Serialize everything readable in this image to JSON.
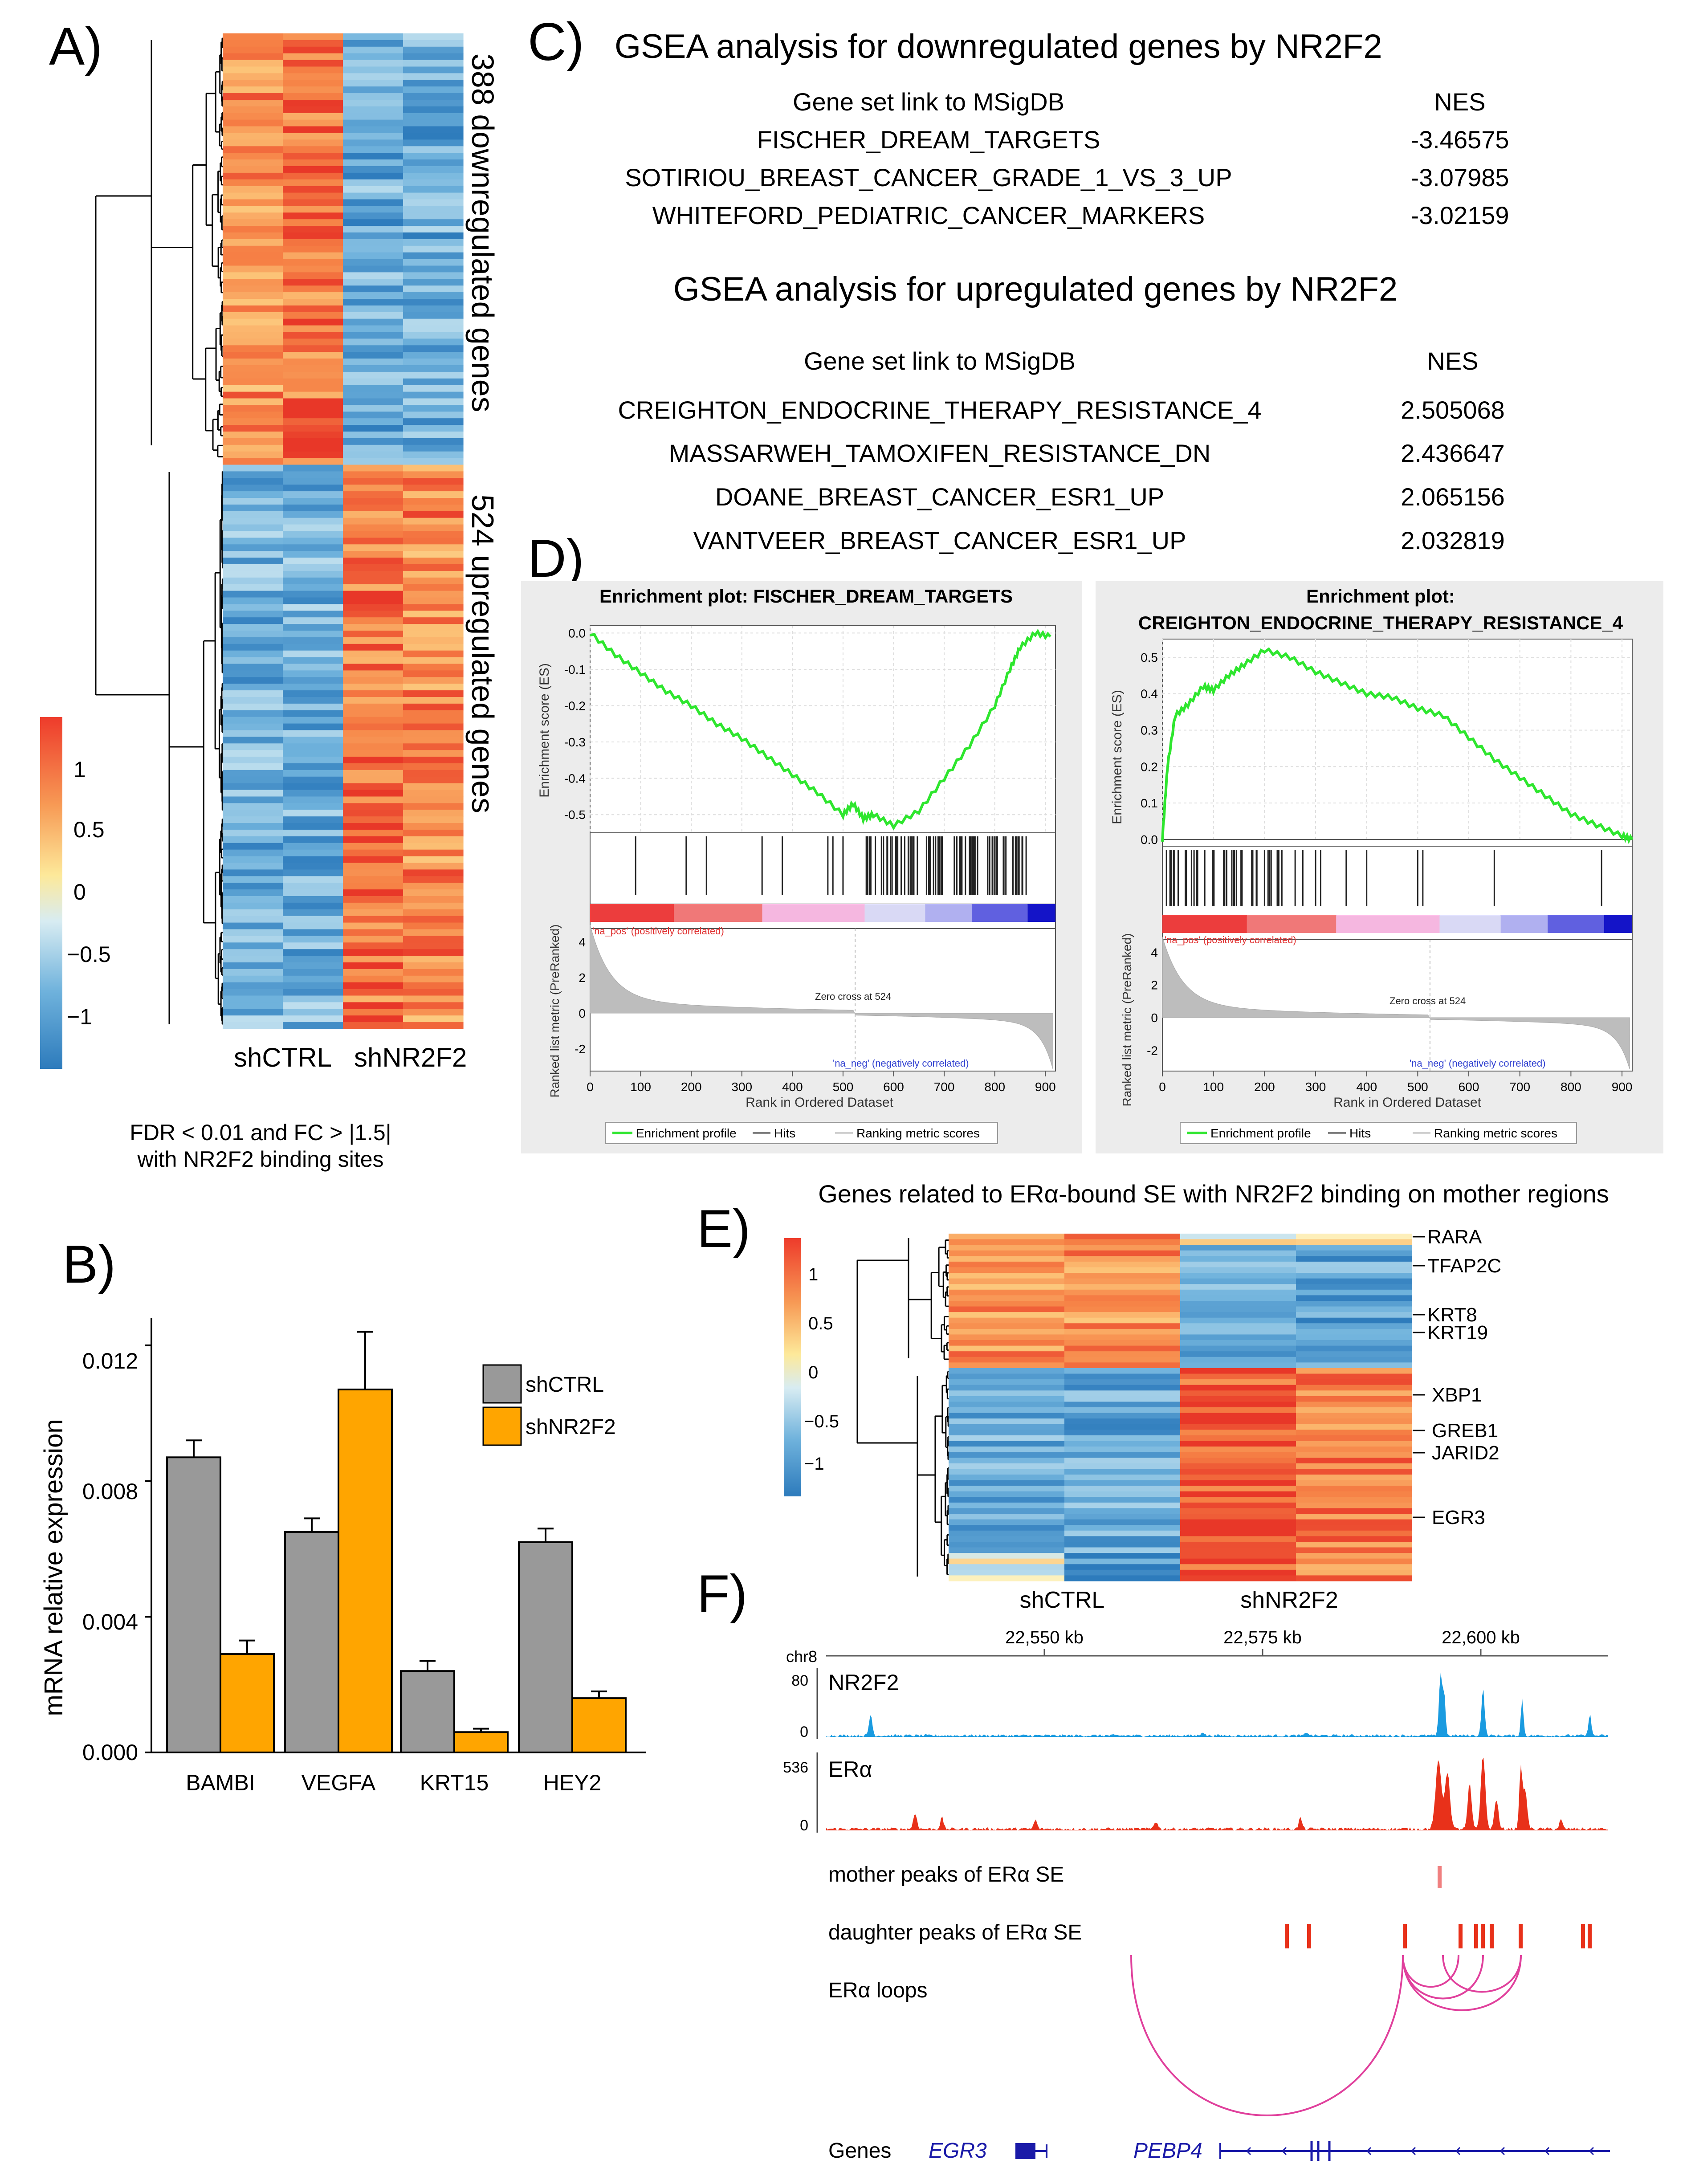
{
  "panel_labels": {
    "a": "A)",
    "b": "B)",
    "c": "C)",
    "d": "D)",
    "e": "E)",
    "f": "F)"
  },
  "panelA": {
    "down_label": "388 downregulated genes",
    "up_label": "524 upregulated genes",
    "col_labels": [
      "shCTRL",
      "shNR2F2"
    ],
    "caption_line1": "FDR < 0.01 and FC > |1.5|",
    "caption_line2": "with NR2F2 binding sites",
    "legend_ticks": [
      "1",
      "0.5",
      "0",
      "−0.5",
      "−1"
    ]
  },
  "panelB": {
    "chart_data": {
      "type": "bar",
      "categories": [
        "BAMBI",
        "VEGFA",
        "KRT15",
        "HEY2"
      ],
      "series": [
        {
          "name": "shCTRL",
          "values": [
            0.0087,
            0.0065,
            0.0024,
            0.0062
          ],
          "errors": [
            0.0005,
            0.0004,
            0.0003,
            0.0004
          ],
          "color": "#999999"
        },
        {
          "name": "shNR2F2",
          "values": [
            0.0029,
            0.0107,
            0.0006,
            0.0016
          ],
          "errors": [
            0.0004,
            0.0017,
            0.0001,
            0.0002
          ],
          "color": "#FFA500"
        }
      ],
      "ylabel": "mRNA relative expression",
      "ylim": [
        0,
        0.0128
      ],
      "yticks": [
        "0.000",
        "0.004",
        "0.008",
        "0.012"
      ],
      "legend_position": "top-right"
    }
  },
  "panelC": {
    "down_title": "GSEA analysis for downregulated genes by NR2F2",
    "up_title": "GSEA analysis for upregulated genes by NR2F2",
    "col_gene_set": "Gene set link to MSigDB",
    "col_nes": "NES",
    "down_rows": [
      {
        "name": "FISCHER_DREAM_TARGETS",
        "nes": "-3.46575"
      },
      {
        "name": "SOTIRIOU_BREAST_CANCER_GRADE_1_VS_3_UP",
        "nes": "-3.07985"
      },
      {
        "name": "WHITEFORD_PEDIATRIC_CANCER_MARKERS",
        "nes": "-3.02159"
      }
    ],
    "up_rows": [
      {
        "name": "CREIGHTON_ENDOCRINE_THERAPY_RESISTANCE_4",
        "nes": "2.505068"
      },
      {
        "name": "MASSARWEH_TAMOXIFEN_RESISTANCE_DN",
        "nes": "2.436647"
      },
      {
        "name": "DOANE_BREAST_CANCER_ESR1_UP",
        "nes": "2.065156"
      },
      {
        "name": "VANTVEER_BREAST_CANCER_ESR1_UP",
        "nes": "2.032819"
      }
    ]
  },
  "panelD": {
    "left_title": "Enrichment plot: FISCHER_DREAM_TARGETS",
    "right_title_1": "Enrichment plot:",
    "right_title_2": "CREIGHTON_ENDOCRINE_THERAPY_RESISTANCE_4",
    "es_label": "Enrichment score (ES)",
    "metric_label": "Ranked list metric (PreRanked)",
    "x_label": "Rank in Ordered Dataset",
    "pos_label": "'na_pos' (positively correlated)",
    "neg_label": "'na_neg' (negatively correlated)",
    "zero_cross": "Zero cross at 524",
    "legend_profile": "Enrichment profile",
    "legend_hits": "Hits",
    "legend_metric": "Ranking metric scores",
    "x_ticks": [
      "0",
      "100",
      "200",
      "300",
      "400",
      "500",
      "600",
      "700",
      "800",
      "900"
    ],
    "left_es_ticks": [
      "0.0",
      "-0.1",
      "-0.2",
      "-0.3",
      "-0.4",
      "-0.5"
    ],
    "right_es_ticks": [
      "0.5",
      "0.4",
      "0.3",
      "0.2",
      "0.1",
      "0.0"
    ],
    "metric_ticks": [
      "4",
      "2",
      "0",
      "-2"
    ],
    "chart_data": [
      {
        "type": "line",
        "title": "Enrichment plot: FISCHER_DREAM_TARGETS",
        "x": [
          0,
          50,
          100,
          150,
          200,
          250,
          300,
          350,
          400,
          450,
          500,
          520,
          540,
          560,
          600,
          650,
          700,
          750,
          800,
          830,
          850,
          880,
          910
        ],
        "y": [
          0.0,
          -0.06,
          -0.11,
          -0.16,
          -0.2,
          -0.25,
          -0.29,
          -0.34,
          -0.39,
          -0.44,
          -0.5,
          -0.47,
          -0.51,
          -0.5,
          -0.53,
          -0.49,
          -0.4,
          -0.31,
          -0.2,
          -0.1,
          -0.04,
          0.0,
          -0.01
        ],
        "ylim": [
          -0.55,
          0.02
        ],
        "xlim": [
          0,
          920
        ]
      },
      {
        "type": "line",
        "title": "Enrichment plot: CREIGHTON_ENDOCRINE_THERAPY_RESISTANCE_4",
        "x": [
          0,
          10,
          25,
          50,
          80,
          100,
          130,
          160,
          200,
          250,
          300,
          350,
          400,
          450,
          500,
          550,
          600,
          650,
          700,
          750,
          800,
          850,
          900,
          920
        ],
        "y": [
          0.0,
          0.2,
          0.34,
          0.37,
          0.42,
          0.41,
          0.45,
          0.48,
          0.52,
          0.5,
          0.46,
          0.43,
          0.4,
          0.39,
          0.36,
          0.34,
          0.28,
          0.22,
          0.17,
          0.12,
          0.07,
          0.04,
          0.01,
          0.0
        ],
        "ylim": [
          0,
          0.55
        ],
        "xlim": [
          0,
          920
        ]
      }
    ]
  },
  "panelE": {
    "title": "Genes related to ERα-bound SE with NR2F2 binding on mother regions",
    "genes": [
      "RARA",
      "TFAP2C",
      "KRT8",
      "KRT19",
      "XBP1",
      "GREB1",
      "JARID2",
      "EGR3"
    ],
    "col_labels": [
      "shCTRL",
      "shNR2F2"
    ],
    "legend_ticks": [
      "1",
      "0.5",
      "0",
      "−0.5",
      "−1"
    ]
  },
  "panelF": {
    "chrom": "chr8",
    "coords": [
      "22,550 kb",
      "22,575 kb",
      "22,600 kb"
    ],
    "track1": {
      "name": "NR2F2",
      "max": "80",
      "min": "0",
      "color": "#1a9be0"
    },
    "track2": {
      "name": "ERα",
      "max": "536",
      "min": "0",
      "color": "#e8311a"
    },
    "mother_label": "mother peaks of ERα SE",
    "daughter_label": "daughter peaks of ERα SE",
    "loops_label": "ERα loops",
    "genes_label": "Genes",
    "gene1": "EGR3",
    "gene2": "PEBP4"
  }
}
